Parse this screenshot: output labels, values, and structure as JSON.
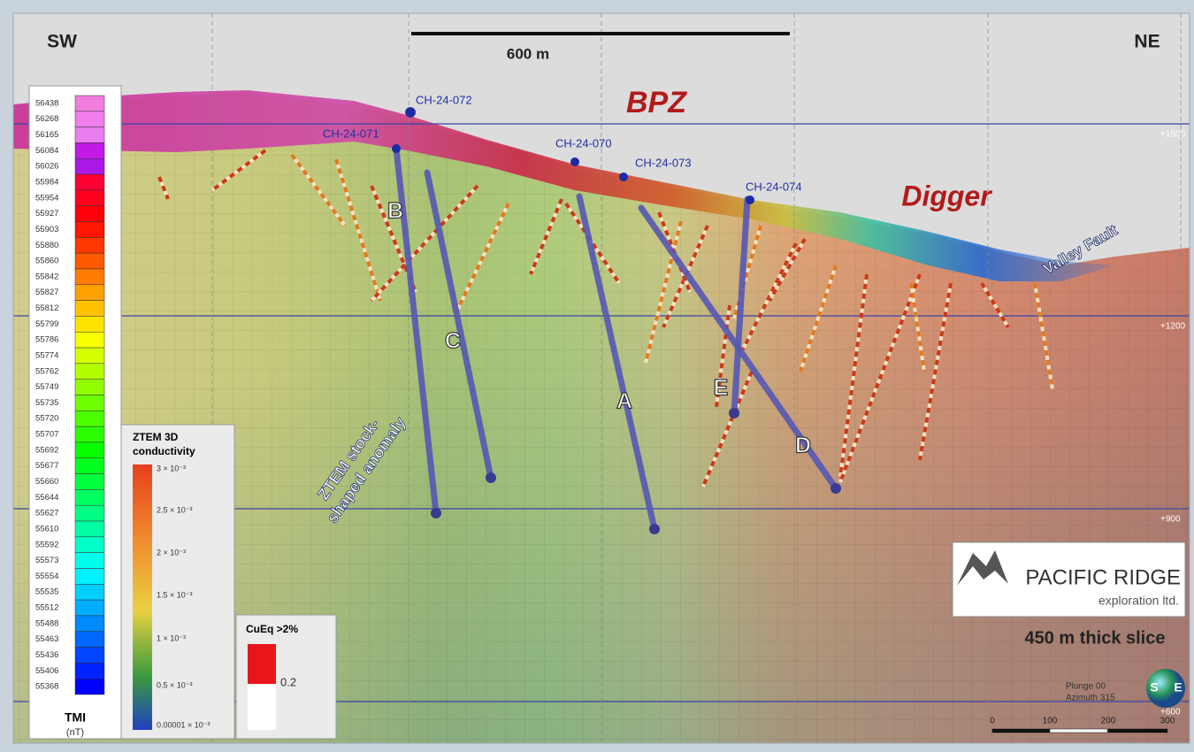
{
  "header": {
    "left": "SW",
    "right": "NE",
    "scale_bar": "600 m"
  },
  "zones": {
    "bpz": "BPZ",
    "digger": "Digger",
    "fault": "Valley Fault"
  },
  "collars": [
    "CH-24-072",
    "CH-24-071",
    "CH-24-070",
    "CH-24-073",
    "CH-24-074"
  ],
  "targets": [
    "B",
    "C",
    "A",
    "E",
    "D"
  ],
  "anomaly": [
    "ZTEM stock-",
    "shaped anomaly"
  ],
  "elevations": [
    "+1500",
    "+1200",
    "+900",
    "+600"
  ],
  "tmi_legend": {
    "values": [
      "56438",
      "56268",
      "56165",
      "56084",
      "56026",
      "55984",
      "55954",
      "55927",
      "55903",
      "55880",
      "55860",
      "55842",
      "55827",
      "55812",
      "55799",
      "55786",
      "55774",
      "55762",
      "55749",
      "55735",
      "55720",
      "55707",
      "55692",
      "55677",
      "55660",
      "55644",
      "55627",
      "55610",
      "55592",
      "55573",
      "55554",
      "55535",
      "55512",
      "55488",
      "55463",
      "55436",
      "55406",
      "55368"
    ],
    "title": "TMI",
    "unit": "(nT)"
  },
  "ztem_legend": {
    "title": [
      "ZTEM 3D",
      "conductivity"
    ],
    "labels": [
      "3 × 10⁻³",
      "2.5 × 10⁻³",
      "2 × 10⁻³",
      "1.5 × 10⁻³",
      "1 × 10⁻³",
      "0.5 × 10⁻³",
      "0.00001 × 10⁻³"
    ]
  },
  "cueq_legend": {
    "title": "CuEq >2%",
    "label": "0.2"
  },
  "logo": {
    "name": "PACIFIC RIDGE",
    "sub": "exploration ltd."
  },
  "slice": "450 m thick slice",
  "orientation": [
    "Plunge 00",
    "Azimuth 315"
  ],
  "compass": [
    "S",
    "E"
  ],
  "scale": [
    "0",
    "100",
    "200",
    "300"
  ]
}
